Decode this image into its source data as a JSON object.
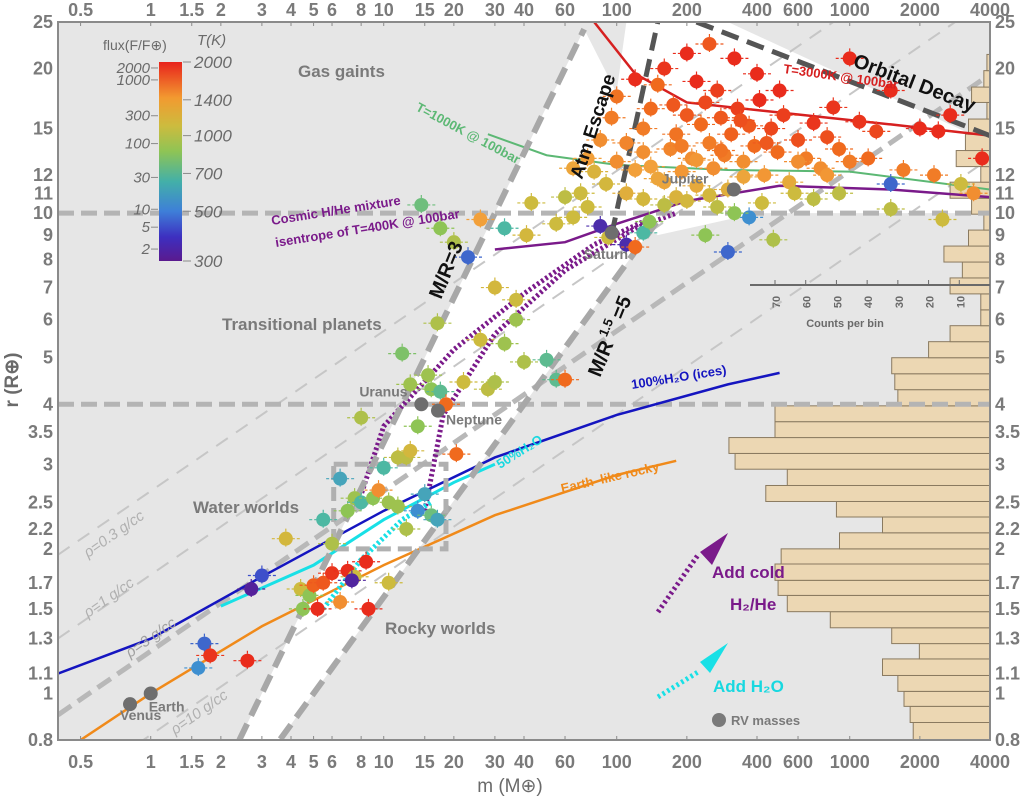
{
  "chart_data": {
    "type": "scatter",
    "title": "",
    "xlabel": "m (M⊕)",
    "ylabel": "r (R⊕)",
    "xscale": "log",
    "yscale": "log",
    "xlim": [
      0.4,
      4000
    ],
    "ylim": [
      0.8,
      25
    ],
    "grid": false,
    "x_ticks": [
      "0.5",
      "1",
      "1.5",
      "2",
      "3",
      "4",
      "5",
      "6",
      "8",
      "10",
      "15",
      "20",
      "30",
      "40",
      "60",
      "100",
      "200",
      "400",
      "600",
      "1000",
      "2000",
      "4000"
    ],
    "y_ticks": [
      "0.8",
      "1",
      "1.1",
      "1.3",
      "1.5",
      "1.7",
      "2",
      "2.2",
      "2.5",
      "3",
      "3.5",
      "4",
      "5",
      "6",
      "7",
      "8",
      "9",
      "10",
      "11",
      "12",
      "15",
      "20",
      "25"
    ],
    "colorbar": {
      "flux_label": "flux(F/F⊕)",
      "temp_label": "T(K)",
      "flux_ticks": [
        "2000",
        "1000",
        "300",
        "100",
        "30",
        "10",
        "5",
        "2"
      ],
      "temp_ticks": [
        "2000",
        "1400",
        "1000",
        "700",
        "500",
        "300"
      ],
      "colors": [
        "#e8231c",
        "#f06a1e",
        "#f2a03a",
        "#cdbb3e",
        "#8ec455",
        "#4db8a3",
        "#3e8fd0",
        "#3d45c8",
        "#5a1a8e"
      ]
    },
    "reference_lines": [
      {
        "name": "100%H2O (ices)",
        "color": "#1515c0"
      },
      {
        "name": "50%H2O",
        "color": "#18e0e6"
      },
      {
        "name": "Earth-like rocky",
        "color": "#f08a1a"
      },
      {
        "name": "T=1000K @ 100bar",
        "color": "#5cb874"
      },
      {
        "name": "T=3000K @ 100bar",
        "color": "#d62020"
      },
      {
        "name": "Cosmic H/He mixture isentrope of T=400K @ 100bar",
        "color": "#7a1a8a"
      },
      {
        "name": "ρ=0.3 g/cc"
      },
      {
        "name": "ρ=1 g/cc"
      },
      {
        "name": "ρ=3 g/cc"
      },
      {
        "name": "ρ=10 g/cc"
      }
    ],
    "annotations": {
      "gas_giants": "Gas gaints",
      "transitional": "Transitional planets",
      "water_worlds": "Water worlds",
      "rocky_worlds": "Rocky worlds",
      "atm_escape": "Atm Escape",
      "orbital_decay": "Orbital Decay",
      "mr3": "M/R=3",
      "mr15": "M/R",
      "mr15_exp": "1.5",
      "mr15_val": "=5",
      "t1000": "T=1000K @ 100bar",
      "t3000": "T=3000K @ 100bar",
      "cosmic1": "Cosmic H/He mixture",
      "cosmic2": "isentrope of T=400K @ 100bar",
      "h2o100": "100%H₂O (ices)",
      "h2o50": "50%H₂O",
      "rocky": "Earth–like rocky",
      "rho03": "ρ=0.3 g/cc",
      "rho1": "ρ=1 g/cc",
      "rho3": "ρ=3 g/cc",
      "rho10": "ρ=10 g/cc",
      "add_cold1": "Add cold",
      "add_cold2": "H₂/He",
      "add_h2o": "Add H₂O",
      "rv_masses": "RV masses",
      "counts_label": "Counts per bin",
      "counts_ticks": [
        "70",
        "60",
        "50",
        "40",
        "30",
        "20",
        "10"
      ]
    },
    "solar_system": [
      {
        "name": "Venus",
        "m": 0.815,
        "r": 0.95
      },
      {
        "name": "Earth",
        "m": 1.0,
        "r": 1.0
      },
      {
        "name": "Uranus",
        "m": 14.5,
        "r": 4.0
      },
      {
        "name": "Neptune",
        "m": 17.1,
        "r": 3.88
      },
      {
        "name": "Saturn",
        "m": 95.2,
        "r": 9.1
      },
      {
        "name": "Jupiter",
        "m": 318,
        "r": 11.2
      }
    ],
    "planets": [
      {
        "m": 1.6,
        "r": 1.13,
        "T": 500
      },
      {
        "m": 1.7,
        "r": 1.27,
        "T": 450
      },
      {
        "m": 1.8,
        "r": 1.2,
        "T": 1900
      },
      {
        "m": 2.6,
        "r": 1.17,
        "T": 1950
      },
      {
        "m": 2.7,
        "r": 1.65,
        "T": 320
      },
      {
        "m": 3.0,
        "r": 1.76,
        "T": 420
      },
      {
        "m": 4.4,
        "r": 1.65,
        "T": 1000
      },
      {
        "m": 4.5,
        "r": 1.5,
        "T": 800
      },
      {
        "m": 4.8,
        "r": 1.6,
        "T": 800
      },
      {
        "m": 5.0,
        "r": 1.68,
        "T": 1650
      },
      {
        "m": 5.2,
        "r": 1.5,
        "T": 1950
      },
      {
        "m": 5.5,
        "r": 1.7,
        "T": 1700
      },
      {
        "m": 6.0,
        "r": 1.78,
        "T": 1900
      },
      {
        "m": 6.5,
        "r": 1.55,
        "T": 1400
      },
      {
        "m": 7.0,
        "r": 1.8,
        "T": 1950
      },
      {
        "m": 7.5,
        "r": 1.75,
        "T": 1000
      },
      {
        "m": 7.3,
        "r": 1.72,
        "T": 330
      },
      {
        "m": 8.4,
        "r": 1.88,
        "T": 1950
      },
      {
        "m": 8.6,
        "r": 1.5,
        "T": 1950
      },
      {
        "m": 10.5,
        "r": 1.7,
        "T": 1000
      },
      {
        "m": 3.8,
        "r": 2.1,
        "T": 1050
      },
      {
        "m": 5.5,
        "r": 2.3,
        "T": 600
      },
      {
        "m": 6.0,
        "r": 2.05,
        "T": 900
      },
      {
        "m": 6.5,
        "r": 2.8,
        "T": 550
      },
      {
        "m": 7.0,
        "r": 2.4,
        "T": 800
      },
      {
        "m": 7.5,
        "r": 2.55,
        "T": 850
      },
      {
        "m": 8.0,
        "r": 2.5,
        "T": 600
      },
      {
        "m": 9.0,
        "r": 2.55,
        "T": 800
      },
      {
        "m": 9.5,
        "r": 2.65,
        "T": 1400
      },
      {
        "m": 10.5,
        "r": 2.5,
        "T": 850
      },
      {
        "m": 11.5,
        "r": 2.45,
        "T": 850
      },
      {
        "m": 12.5,
        "r": 2.2,
        "T": 900
      },
      {
        "m": 14.0,
        "r": 2.4,
        "T": 500
      },
      {
        "m": 15.0,
        "r": 2.6,
        "T": 550
      },
      {
        "m": 16.0,
        "r": 2.35,
        "T": 700
      },
      {
        "m": 17.0,
        "r": 2.3,
        "T": 550
      },
      {
        "m": 10.0,
        "r": 2.95,
        "T": 600
      },
      {
        "m": 11.5,
        "r": 3.1,
        "T": 950
      },
      {
        "m": 12.5,
        "r": 3.1,
        "T": 950
      },
      {
        "m": 13.0,
        "r": 3.2,
        "T": 1050
      },
      {
        "m": 20.5,
        "r": 3.15,
        "T": 1600
      },
      {
        "m": 14.0,
        "r": 3.6,
        "T": 800
      },
      {
        "m": 8.0,
        "r": 3.75,
        "T": 900
      },
      {
        "m": 16.0,
        "r": 4.3,
        "T": 800
      },
      {
        "m": 17.5,
        "r": 4.25,
        "T": 650
      },
      {
        "m": 18.5,
        "r": 4.0,
        "T": 1600
      },
      {
        "m": 13.0,
        "r": 4.4,
        "T": 850
      },
      {
        "m": 15.5,
        "r": 4.6,
        "T": 850
      },
      {
        "m": 22.0,
        "r": 4.45,
        "T": 1000
      },
      {
        "m": 28.0,
        "r": 4.3,
        "T": 950
      },
      {
        "m": 40.0,
        "r": 4.9,
        "T": 900
      },
      {
        "m": 50.0,
        "r": 4.95,
        "T": 650
      },
      {
        "m": 30.0,
        "r": 4.45,
        "T": 900
      },
      {
        "m": 55.0,
        "r": 4.5,
        "T": 650
      },
      {
        "m": 60.0,
        "r": 4.5,
        "T": 1600
      },
      {
        "m": 12.0,
        "r": 5.1,
        "T": 750
      },
      {
        "m": 17.0,
        "r": 5.9,
        "T": 900
      },
      {
        "m": 26.0,
        "r": 5.45,
        "T": 1000
      },
      {
        "m": 33.0,
        "r": 5.35,
        "T": 850
      },
      {
        "m": 30.0,
        "r": 7.0,
        "T": 1050
      },
      {
        "m": 37.0,
        "r": 6.6,
        "T": 1000
      },
      {
        "m": 37.0,
        "r": 6.0,
        "T": 850
      },
      {
        "m": 23.0,
        "r": 8.1,
        "T": 450
      },
      {
        "m": 17.5,
        "r": 9.3,
        "T": 800
      },
      {
        "m": 20.0,
        "r": 8.7,
        "T": 900
      },
      {
        "m": 26.0,
        "r": 9.7,
        "T": 1300
      },
      {
        "m": 33.0,
        "r": 9.3,
        "T": 600
      },
      {
        "m": 41.0,
        "r": 9.0,
        "T": 1050
      },
      {
        "m": 14.5,
        "r": 10.4,
        "T": 700
      },
      {
        "m": 43.0,
        "r": 10.5,
        "T": 1000
      },
      {
        "m": 55.0,
        "r": 9.5,
        "T": 1000
      },
      {
        "m": 65.0,
        "r": 9.8,
        "T": 1000
      },
      {
        "m": 75.0,
        "r": 10.3,
        "T": 1000
      },
      {
        "m": 85.0,
        "r": 9.4,
        "T": 350
      },
      {
        "m": 92.0,
        "r": 8.9,
        "T": 1000
      },
      {
        "m": 110.0,
        "r": 8.6,
        "T": 350
      },
      {
        "m": 120.0,
        "r": 8.5,
        "T": 1600
      },
      {
        "m": 130.0,
        "r": 9.1,
        "T": 600
      },
      {
        "m": 138.0,
        "r": 9.6,
        "T": 800
      },
      {
        "m": 300.0,
        "r": 8.3,
        "T": 450
      },
      {
        "m": 240.0,
        "r": 9.0,
        "T": 800
      },
      {
        "m": 370.0,
        "r": 9.8,
        "T": 500
      },
      {
        "m": 470.0,
        "r": 8.8,
        "T": 900
      },
      {
        "m": 1500.0,
        "r": 10.2,
        "T": 950
      },
      {
        "m": 2500.0,
        "r": 9.7,
        "T": 1000
      },
      {
        "m": 1500.0,
        "r": 11.5,
        "T": 450
      },
      {
        "m": 900.0,
        "r": 11.0,
        "T": 950
      },
      {
        "m": 700.0,
        "r": 10.7,
        "T": 950
      },
      {
        "m": 130.0,
        "r": 15.0,
        "T": 1500
      },
      {
        "m": 100.0,
        "r": 12.8,
        "T": 1400
      },
      {
        "m": 90.0,
        "r": 11.5,
        "T": 1050
      },
      {
        "m": 80.0,
        "r": 12.2,
        "T": 1100
      },
      {
        "m": 70.0,
        "r": 11.0,
        "T": 1000
      },
      {
        "m": 60.0,
        "r": 10.8,
        "T": 950
      },
      {
        "m": 110.0,
        "r": 11.0,
        "T": 1150
      },
      {
        "m": 120.0,
        "r": 12.3,
        "T": 1300
      },
      {
        "m": 130.0,
        "r": 13.4,
        "T": 1400
      },
      {
        "m": 140.0,
        "r": 12.5,
        "T": 1300
      },
      {
        "m": 160.0,
        "r": 11.6,
        "T": 1250
      },
      {
        "m": 170.0,
        "r": 13.6,
        "T": 1450
      },
      {
        "m": 180.0,
        "r": 14.6,
        "T": 1550
      },
      {
        "m": 190.0,
        "r": 12.2,
        "T": 1350
      },
      {
        "m": 200.0,
        "r": 16.0,
        "T": 1700
      },
      {
        "m": 210.0,
        "r": 13.0,
        "T": 1400
      },
      {
        "m": 220.0,
        "r": 11.4,
        "T": 1200
      },
      {
        "m": 230.0,
        "r": 15.3,
        "T": 1600
      },
      {
        "m": 240.0,
        "r": 17.0,
        "T": 1800
      },
      {
        "m": 250.0,
        "r": 14.0,
        "T": 1500
      },
      {
        "m": 260.0,
        "r": 12.4,
        "T": 1400
      },
      {
        "m": 270.0,
        "r": 18.0,
        "T": 1850
      },
      {
        "m": 280.0,
        "r": 15.8,
        "T": 1700
      },
      {
        "m": 290.0,
        "r": 13.2,
        "T": 1500
      },
      {
        "m": 300.0,
        "r": 11.2,
        "T": 1150
      },
      {
        "m": 310.0,
        "r": 14.6,
        "T": 1650
      },
      {
        "m": 330.0,
        "r": 16.5,
        "T": 1850
      },
      {
        "m": 350.0,
        "r": 12.8,
        "T": 1400
      },
      {
        "m": 370.0,
        "r": 15.2,
        "T": 1700
      },
      {
        "m": 390.0,
        "r": 13.8,
        "T": 1600
      },
      {
        "m": 410.0,
        "r": 17.2,
        "T": 1950
      },
      {
        "m": 430.0,
        "r": 12.0,
        "T": 1350
      },
      {
        "m": 460.0,
        "r": 15.0,
        "T": 1800
      },
      {
        "m": 490.0,
        "r": 13.4,
        "T": 1600
      },
      {
        "m": 520.0,
        "r": 16.0,
        "T": 1850
      },
      {
        "m": 550.0,
        "r": 11.6,
        "T": 1200
      },
      {
        "m": 600.0,
        "r": 14.2,
        "T": 1750
      },
      {
        "m": 650.0,
        "r": 13.0,
        "T": 1500
      },
      {
        "m": 700.0,
        "r": 15.4,
        "T": 1900
      },
      {
        "m": 750.0,
        "r": 12.4,
        "T": 1400
      },
      {
        "m": 800.0,
        "r": 14.4,
        "T": 1750
      },
      {
        "m": 850.0,
        "r": 16.6,
        "T": 1900
      },
      {
        "m": 900.0,
        "r": 13.6,
        "T": 1600
      },
      {
        "m": 1000.0,
        "r": 21.0,
        "T": 1950
      },
      {
        "m": 1100.0,
        "r": 15.5,
        "T": 1900
      },
      {
        "m": 1200.0,
        "r": 13.0,
        "T": 1600
      },
      {
        "m": 1300.0,
        "r": 14.8,
        "T": 1800
      },
      {
        "m": 1500.0,
        "r": 18.0,
        "T": 1950
      },
      {
        "m": 1700.0,
        "r": 12.3,
        "T": 1500
      },
      {
        "m": 2000.0,
        "r": 15.0,
        "T": 1950
      },
      {
        "m": 2400.0,
        "r": 14.8,
        "T": 1950
      },
      {
        "m": 2700.0,
        "r": 16.0,
        "T": 1950
      },
      {
        "m": 2300.0,
        "r": 12.0,
        "T": 1500
      },
      {
        "m": 3000.0,
        "r": 11.5,
        "T": 1000
      },
      {
        "m": 3400.0,
        "r": 11.0,
        "T": 1400
      },
      {
        "m": 3700.0,
        "r": 13.0,
        "T": 1950
      },
      {
        "m": 150.0,
        "r": 18.5,
        "T": 1600
      },
      {
        "m": 160.0,
        "r": 20.0,
        "T": 1900
      },
      {
        "m": 250.0,
        "r": 22.5,
        "T": 1700
      },
      {
        "m": 120.0,
        "r": 19.0,
        "T": 1950
      },
      {
        "m": 220.0,
        "r": 18.8,
        "T": 1950
      },
      {
        "m": 175.0,
        "r": 16.8,
        "T": 1700
      },
      {
        "m": 140.0,
        "r": 16.5,
        "T": 1600
      },
      {
        "m": 320.0,
        "r": 21.0,
        "T": 1950
      },
      {
        "m": 200.0,
        "r": 21.5,
        "T": 1950
      },
      {
        "m": 400.0,
        "r": 19.5,
        "T": 1950
      },
      {
        "m": 500.0,
        "r": 18.0,
        "T": 1950
      },
      {
        "m": 95.0,
        "r": 15.8,
        "T": 1500
      },
      {
        "m": 85.0,
        "r": 14.2,
        "T": 1400
      },
      {
        "m": 75.0,
        "r": 13.0,
        "T": 1300
      },
      {
        "m": 65.0,
        "r": 12.4,
        "T": 1250
      },
      {
        "m": 100.0,
        "r": 17.5,
        "T": 1550
      },
      {
        "m": 110.0,
        "r": 14.0,
        "T": 1450
      },
      {
        "m": 150.0,
        "r": 11.8,
        "T": 1250
      },
      {
        "m": 180.0,
        "r": 10.8,
        "T": 1100
      },
      {
        "m": 130.0,
        "r": 10.7,
        "T": 1050
      },
      {
        "m": 160.0,
        "r": 10.4,
        "T": 950
      },
      {
        "m": 200.0,
        "r": 10.6,
        "T": 1050
      },
      {
        "m": 250.0,
        "r": 10.9,
        "T": 1050
      },
      {
        "m": 270.0,
        "r": 10.3,
        "T": 950
      },
      {
        "m": 320.0,
        "r": 10.0,
        "T": 800
      },
      {
        "m": 420.0,
        "r": 10.5,
        "T": 1000
      },
      {
        "m": 580.0,
        "r": 11.0,
        "T": 1000
      },
      {
        "m": 350.0,
        "r": 11.9,
        "T": 1250
      },
      {
        "m": 600.0,
        "r": 12.8,
        "T": 1400
      },
      {
        "m": 220.0,
        "r": 12.9,
        "T": 1350
      },
      {
        "m": 190.0,
        "r": 13.8,
        "T": 1500
      },
      {
        "m": 280.0,
        "r": 13.5,
        "T": 1550
      },
      {
        "m": 340.0,
        "r": 15.6,
        "T": 1750
      },
      {
        "m": 440.0,
        "r": 14.0,
        "T": 1700
      },
      {
        "m": 800.0,
        "r": 12.0,
        "T": 1350
      },
      {
        "m": 1000.0,
        "r": 12.8,
        "T": 1500
      }
    ],
    "histogram": {
      "orientation": "horizontal",
      "bins_r": [
        0.8,
        0.87,
        0.94,
        1.01,
        1.09,
        1.18,
        1.27,
        1.37,
        1.48,
        1.6,
        1.72,
        1.86,
        2.0,
        2.16,
        2.33,
        2.51,
        2.71,
        2.93,
        3.16,
        3.41,
        3.68,
        3.97,
        4.29,
        4.63,
        5.0,
        5.4,
        5.83,
        6.29,
        6.79,
        7.33,
        7.91,
        8.54,
        9.22,
        9.95,
        10.74,
        11.6,
        12.5,
        13.5,
        14.6,
        15.7,
        17.0,
        18.3,
        19.8,
        21.4,
        23.1,
        25.0
      ],
      "counts": [
        25,
        26,
        28,
        30,
        35,
        23,
        32,
        52,
        66,
        69,
        70,
        68,
        49,
        35,
        50,
        73,
        66,
        83,
        85,
        70,
        70,
        30,
        31,
        32,
        20,
        13,
        3,
        3,
        13,
        9,
        15,
        7,
        2,
        6,
        13,
        3,
        11,
        8,
        7,
        1,
        6,
        2,
        1,
        0,
        0,
        1
      ]
    }
  }
}
